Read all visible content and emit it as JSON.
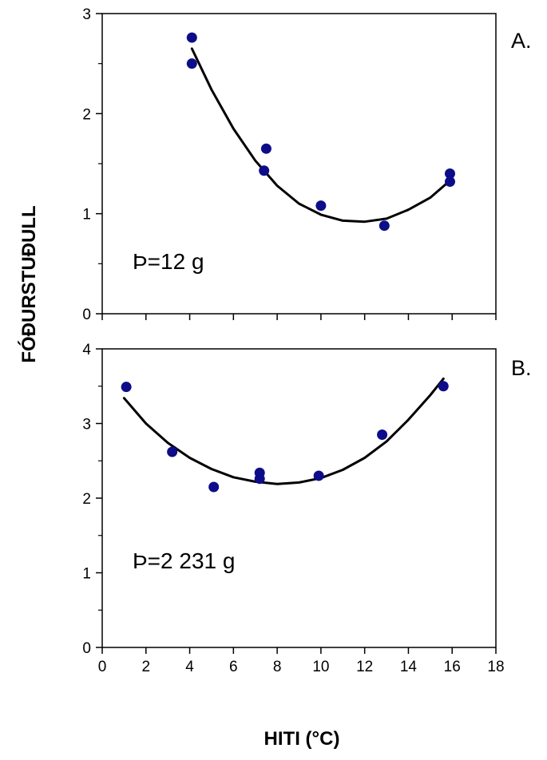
{
  "chart_data": [
    {
      "type": "scatter",
      "panel_label": "A.",
      "annotation": "Þ=12 g",
      "xlim": [
        0,
        18
      ],
      "ylim": [
        0,
        3
      ],
      "y_ticks": [
        0,
        1,
        2,
        3
      ],
      "x_ticks": [
        0,
        2,
        4,
        6,
        8,
        10,
        12,
        14,
        16,
        18
      ],
      "x_tick_labels_shown": false,
      "grid": false,
      "series": [
        {
          "points": [
            {
              "x": 4.1,
              "y": 2.76
            },
            {
              "x": 4.1,
              "y": 2.5
            },
            {
              "x": 7.5,
              "y": 1.65
            },
            {
              "x": 7.4,
              "y": 1.43
            },
            {
              "x": 10.0,
              "y": 1.08
            },
            {
              "x": 12.9,
              "y": 0.88
            },
            {
              "x": 15.9,
              "y": 1.4
            },
            {
              "x": 15.9,
              "y": 1.32
            }
          ],
          "color": "#0d0d8a"
        }
      ],
      "trendline": {
        "points": [
          {
            "x": 4.1,
            "y": 2.65
          },
          {
            "x": 5.0,
            "y": 2.24
          },
          {
            "x": 6.0,
            "y": 1.85
          },
          {
            "x": 7.0,
            "y": 1.53
          },
          {
            "x": 8.0,
            "y": 1.28
          },
          {
            "x": 9.0,
            "y": 1.1
          },
          {
            "x": 10.0,
            "y": 0.99
          },
          {
            "x": 11.0,
            "y": 0.93
          },
          {
            "x": 12.0,
            "y": 0.92
          },
          {
            "x": 13.0,
            "y": 0.95
          },
          {
            "x": 14.0,
            "y": 1.04
          },
          {
            "x": 15.0,
            "y": 1.16
          },
          {
            "x": 15.9,
            "y": 1.33
          }
        ],
        "color": "#000000"
      }
    },
    {
      "type": "scatter",
      "panel_label": "B.",
      "annotation": "Þ=2 231 g",
      "xlim": [
        0,
        18
      ],
      "ylim": [
        0,
        4
      ],
      "y_ticks": [
        0,
        1,
        2,
        3,
        4
      ],
      "x_ticks": [
        0,
        2,
        4,
        6,
        8,
        10,
        12,
        14,
        16,
        18
      ],
      "x_tick_labels_shown": true,
      "grid": false,
      "series": [
        {
          "points": [
            {
              "x": 1.1,
              "y": 3.49
            },
            {
              "x": 3.2,
              "y": 2.62
            },
            {
              "x": 5.1,
              "y": 2.15
            },
            {
              "x": 7.2,
              "y": 2.34
            },
            {
              "x": 7.2,
              "y": 2.26
            },
            {
              "x": 9.9,
              "y": 2.3
            },
            {
              "x": 12.8,
              "y": 2.85
            },
            {
              "x": 15.6,
              "y": 3.5
            }
          ],
          "color": "#0d0d8a"
        }
      ],
      "trendline": {
        "points": [
          {
            "x": 1.0,
            "y": 3.34
          },
          {
            "x": 2.0,
            "y": 3.0
          },
          {
            "x": 3.0,
            "y": 2.74
          },
          {
            "x": 4.0,
            "y": 2.54
          },
          {
            "x": 5.0,
            "y": 2.39
          },
          {
            "x": 6.0,
            "y": 2.28
          },
          {
            "x": 7.0,
            "y": 2.22
          },
          {
            "x": 8.0,
            "y": 2.19
          },
          {
            "x": 9.0,
            "y": 2.21
          },
          {
            "x": 10.0,
            "y": 2.27
          },
          {
            "x": 11.0,
            "y": 2.38
          },
          {
            "x": 12.0,
            "y": 2.54
          },
          {
            "x": 13.0,
            "y": 2.76
          },
          {
            "x": 14.0,
            "y": 3.05
          },
          {
            "x": 15.0,
            "y": 3.38
          },
          {
            "x": 15.6,
            "y": 3.6
          }
        ],
        "color": "#000000"
      }
    }
  ],
  "axis_titles": {
    "xlabel": "HITI (°C)",
    "ylabel": "FÓÐURSTUÐULL"
  }
}
